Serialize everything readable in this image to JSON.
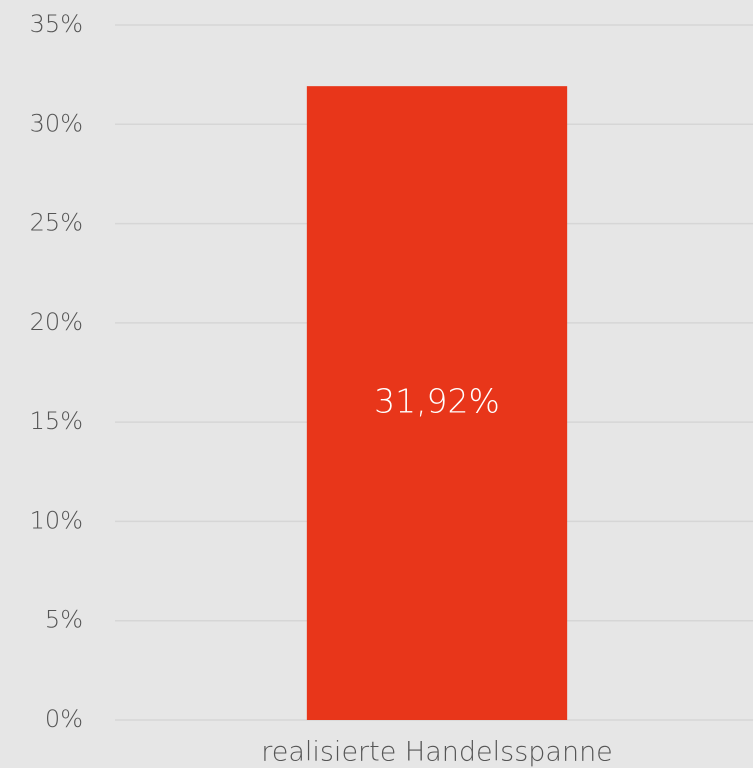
{
  "chart_data": {
    "type": "bar",
    "categories": [
      "realisierte Handelsspanne"
    ],
    "values": [
      31.92
    ],
    "value_labels": [
      "31,92%"
    ],
    "color": "#e8361a",
    "ylim": [
      0,
      35
    ],
    "yticks": [
      {
        "value": 0,
        "label": "0%"
      },
      {
        "value": 5,
        "label": "5%"
      },
      {
        "value": 10,
        "label": "10%"
      },
      {
        "value": 15,
        "label": "15%"
      },
      {
        "value": 20,
        "label": "20%"
      },
      {
        "value": 25,
        "label": "25%"
      },
      {
        "value": 30,
        "label": "30%"
      },
      {
        "value": 35,
        "label": "35%"
      }
    ],
    "grid": true
  }
}
